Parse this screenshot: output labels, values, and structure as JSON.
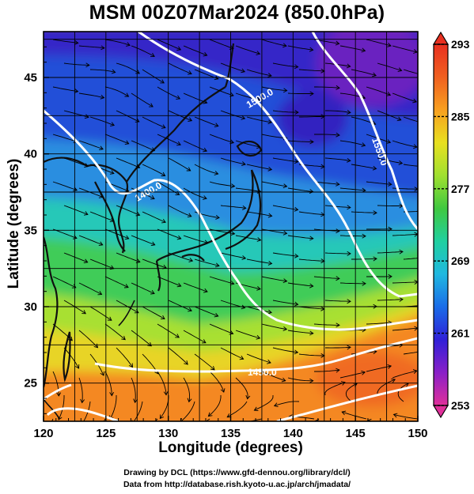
{
  "title": "MSM 00Z07Mar2024 (850.0hPa)",
  "x_axis": {
    "label": "Longitude (degrees)",
    "range": [
      120,
      150
    ],
    "ticks": [
      "120",
      "125",
      "130",
      "135",
      "140",
      "145",
      "150"
    ]
  },
  "y_axis": {
    "label": "Latitude  (degrees)",
    "range": [
      22.5,
      48
    ],
    "ticks": [
      "25",
      "30",
      "35",
      "40",
      "45"
    ]
  },
  "colorbar": {
    "min": 253,
    "max": 293,
    "tick_labels": [
      "293",
      "285",
      "277",
      "269",
      "261",
      "253"
    ],
    "colors": [
      "#e0309a",
      "#8a20c8",
      "#3020d8",
      "#1a6ce8",
      "#20b8e0",
      "#20d0a0",
      "#40c840",
      "#a0e030",
      "#e8e020",
      "#f8a020",
      "#f06020",
      "#e83020"
    ]
  },
  "contours": {
    "color": "#ffffff",
    "labels": [
      "1400.0",
      "1450.0",
      "1500.0",
      "1550.0"
    ]
  },
  "credits": {
    "line1": "Drawing by DCL (https://www.gfd-dennou.org/library/dcl/)",
    "line2": "Data from http://database.rish.kyoto-u.ac.jp/arch/jmadata/"
  }
}
